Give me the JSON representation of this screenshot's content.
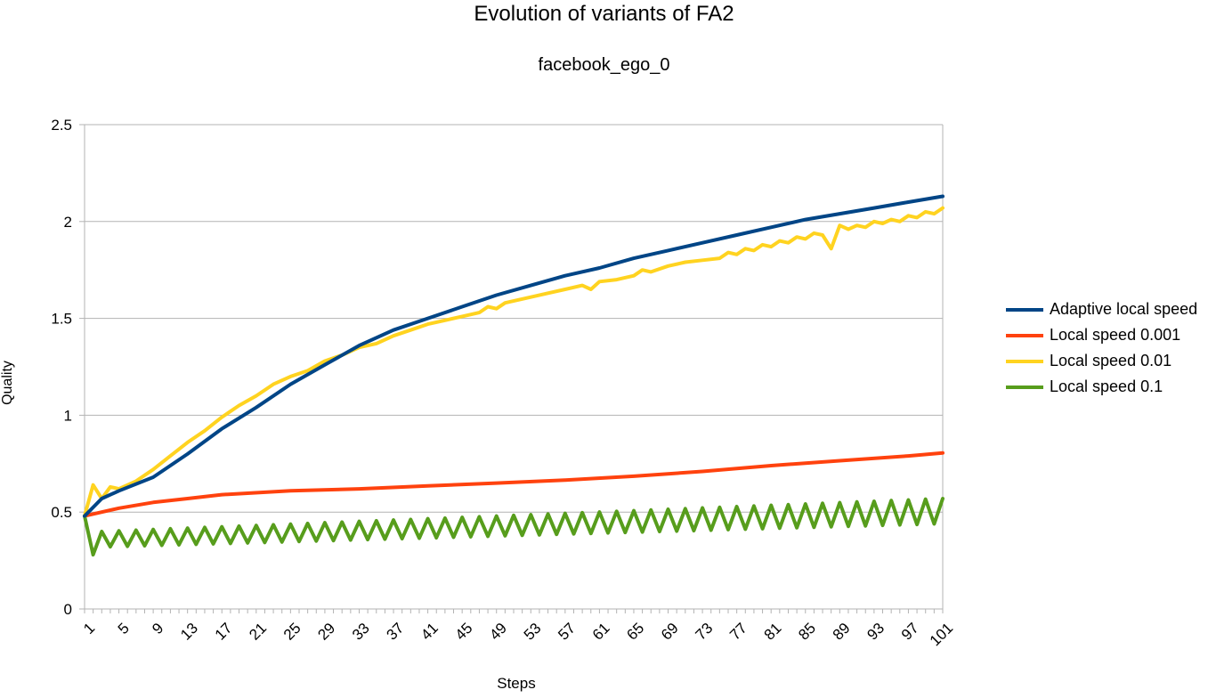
{
  "chart_data": {
    "type": "line",
    "title": "Evolution of variants of FA2",
    "subtitle": "facebook_ego_0",
    "xlabel": "Steps",
    "ylabel": "Quality",
    "ylim": [
      0,
      2.5
    ],
    "yticks": [
      "0",
      "0.5",
      "1",
      "1.5",
      "2",
      "2.5"
    ],
    "x_range": [
      1,
      101
    ],
    "xtick_labels": [
      "1",
      "5",
      "9",
      "13",
      "17",
      "21",
      "25",
      "29",
      "33",
      "37",
      "41",
      "45",
      "49",
      "53",
      "57",
      "61",
      "65",
      "69",
      "73",
      "77",
      "81",
      "85",
      "89",
      "93",
      "97",
      "101"
    ],
    "grid": "horizontal",
    "legend_position": "right",
    "series": [
      {
        "name": "Adaptive local speed",
        "color": "#004586",
        "points": [
          [
            1,
            0.48
          ],
          [
            3,
            0.57
          ],
          [
            5,
            0.61
          ],
          [
            9,
            0.68
          ],
          [
            13,
            0.8
          ],
          [
            17,
            0.93
          ],
          [
            21,
            1.04
          ],
          [
            25,
            1.16
          ],
          [
            29,
            1.26
          ],
          [
            33,
            1.36
          ],
          [
            37,
            1.44
          ],
          [
            41,
            1.5
          ],
          [
            45,
            1.56
          ],
          [
            49,
            1.62
          ],
          [
            53,
            1.67
          ],
          [
            57,
            1.72
          ],
          [
            61,
            1.76
          ],
          [
            65,
            1.81
          ],
          [
            69,
            1.85
          ],
          [
            73,
            1.89
          ],
          [
            77,
            1.93
          ],
          [
            81,
            1.97
          ],
          [
            85,
            2.01
          ],
          [
            89,
            2.04
          ],
          [
            93,
            2.07
          ],
          [
            97,
            2.1
          ],
          [
            101,
            2.13
          ]
        ]
      },
      {
        "name": "Local speed 0.001",
        "color": "#ff420e",
        "points": [
          [
            1,
            0.48
          ],
          [
            5,
            0.52
          ],
          [
            9,
            0.55
          ],
          [
            13,
            0.57
          ],
          [
            17,
            0.59
          ],
          [
            25,
            0.61
          ],
          [
            33,
            0.62
          ],
          [
            41,
            0.635
          ],
          [
            49,
            0.65
          ],
          [
            57,
            0.665
          ],
          [
            65,
            0.685
          ],
          [
            73,
            0.71
          ],
          [
            81,
            0.74
          ],
          [
            89,
            0.765
          ],
          [
            97,
            0.79
          ],
          [
            101,
            0.805
          ]
        ]
      },
      {
        "name": "Local speed 0.01",
        "color": "#ffd320",
        "points": [
          [
            1,
            0.48
          ],
          [
            2,
            0.64
          ],
          [
            3,
            0.57
          ],
          [
            4,
            0.63
          ],
          [
            5,
            0.62
          ],
          [
            7,
            0.66
          ],
          [
            9,
            0.72
          ],
          [
            11,
            0.79
          ],
          [
            13,
            0.86
          ],
          [
            15,
            0.92
          ],
          [
            17,
            0.99
          ],
          [
            19,
            1.05
          ],
          [
            21,
            1.1
          ],
          [
            23,
            1.16
          ],
          [
            25,
            1.2
          ],
          [
            27,
            1.23
          ],
          [
            29,
            1.28
          ],
          [
            31,
            1.31
          ],
          [
            33,
            1.35
          ],
          [
            35,
            1.37
          ],
          [
            37,
            1.41
          ],
          [
            39,
            1.44
          ],
          [
            41,
            1.47
          ],
          [
            43,
            1.49
          ],
          [
            45,
            1.51
          ],
          [
            47,
            1.53
          ],
          [
            48,
            1.56
          ],
          [
            49,
            1.55
          ],
          [
            50,
            1.58
          ],
          [
            53,
            1.61
          ],
          [
            55,
            1.63
          ],
          [
            57,
            1.65
          ],
          [
            59,
            1.67
          ],
          [
            60,
            1.65
          ],
          [
            61,
            1.69
          ],
          [
            63,
            1.7
          ],
          [
            65,
            1.72
          ],
          [
            66,
            1.75
          ],
          [
            67,
            1.74
          ],
          [
            69,
            1.77
          ],
          [
            71,
            1.79
          ],
          [
            73,
            1.8
          ],
          [
            75,
            1.81
          ],
          [
            76,
            1.84
          ],
          [
            77,
            1.83
          ],
          [
            78,
            1.86
          ],
          [
            79,
            1.85
          ],
          [
            80,
            1.88
          ],
          [
            81,
            1.87
          ],
          [
            82,
            1.9
          ],
          [
            83,
            1.89
          ],
          [
            84,
            1.92
          ],
          [
            85,
            1.91
          ],
          [
            86,
            1.94
          ],
          [
            87,
            1.93
          ],
          [
            88,
            1.86
          ],
          [
            89,
            1.98
          ],
          [
            90,
            1.96
          ],
          [
            91,
            1.98
          ],
          [
            92,
            1.97
          ],
          [
            93,
            2.0
          ],
          [
            94,
            1.99
          ],
          [
            95,
            2.01
          ],
          [
            96,
            2.0
          ],
          [
            97,
            2.03
          ],
          [
            98,
            2.02
          ],
          [
            99,
            2.05
          ],
          [
            100,
            2.04
          ],
          [
            101,
            2.07
          ]
        ]
      },
      {
        "name": "Local speed 0.1",
        "color": "#579d1c",
        "zigzag": {
          "start": 0.48,
          "second": 0.28,
          "peak_first": 0.4,
          "peak_last": 0.57,
          "trough_first": 0.32,
          "trough_last": 0.44
        }
      }
    ]
  }
}
